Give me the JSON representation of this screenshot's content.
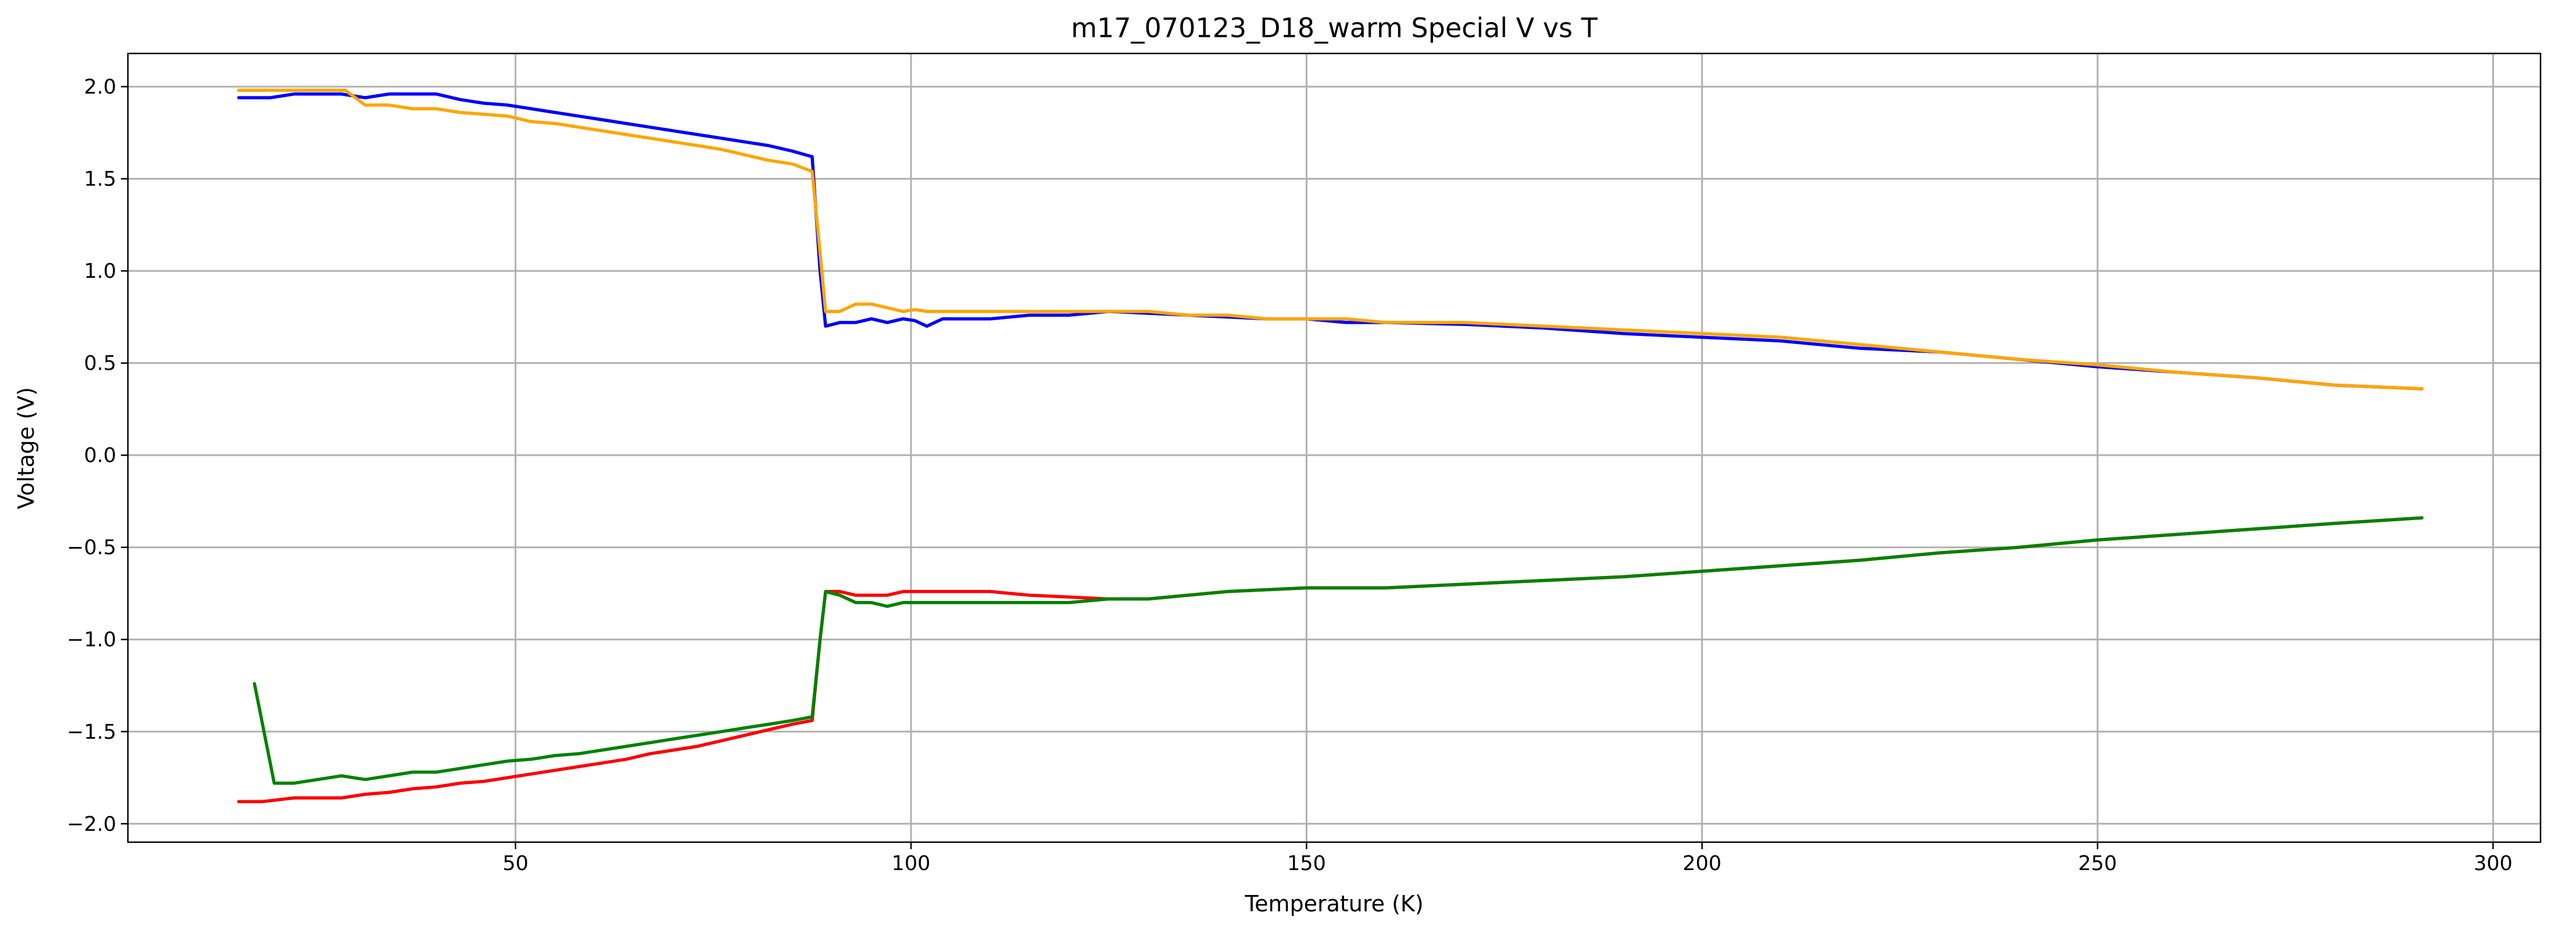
{
  "chart_data": {
    "type": "line",
    "title": "m17_070123_D18_warm Special V vs T",
    "xlabel": "Temperature (K)",
    "ylabel": "Voltage (V)",
    "xlim": [
      1,
      306
    ],
    "ylim": [
      -2.1,
      2.18
    ],
    "xticks": [
      50,
      100,
      150,
      200,
      250,
      300
    ],
    "yticks": [
      2.0,
      1.5,
      1.0,
      0.5,
      0.0,
      -0.5,
      -1.0,
      -1.5,
      -2.0
    ],
    "xtick_labels": [
      "50",
      "100",
      "150",
      "200",
      "250",
      "300"
    ],
    "ytick_labels": [
      "2.0",
      "1.5",
      "1.0",
      "0.5",
      "0.0",
      "−0.5",
      "−1.0",
      "−1.5",
      "−2.0"
    ],
    "grid": true,
    "legend": false,
    "series": [
      {
        "color": "#0000ff",
        "x": [
          15,
          19,
          22,
          25,
          28,
          31,
          34,
          37,
          40,
          43,
          46,
          49,
          52,
          55,
          58,
          61,
          64,
          67,
          70,
          73,
          76,
          79,
          82,
          85,
          87.5,
          88.5,
          89.2,
          91,
          93,
          95,
          97,
          99,
          100.5,
          102,
          104,
          106,
          110,
          115,
          120,
          125,
          130,
          135,
          140,
          145,
          150,
          155,
          160,
          170,
          180,
          190,
          200,
          210,
          220,
          230,
          240,
          250,
          260,
          270,
          280,
          291
        ],
        "y": [
          1.94,
          1.94,
          1.96,
          1.96,
          1.96,
          1.94,
          1.96,
          1.96,
          1.96,
          1.93,
          1.91,
          1.9,
          1.88,
          1.86,
          1.84,
          1.82,
          1.8,
          1.78,
          1.76,
          1.74,
          1.72,
          1.7,
          1.68,
          1.65,
          1.62,
          1.0,
          0.7,
          0.72,
          0.72,
          0.74,
          0.72,
          0.74,
          0.73,
          0.7,
          0.74,
          0.74,
          0.74,
          0.76,
          0.76,
          0.78,
          0.77,
          0.76,
          0.75,
          0.74,
          0.74,
          0.72,
          0.72,
          0.71,
          0.69,
          0.66,
          0.64,
          0.62,
          0.58,
          0.56,
          0.52,
          0.48,
          0.45,
          0.42,
          0.38,
          0.36
        ]
      },
      {
        "color": "#ffa500",
        "x": [
          15,
          20,
          25,
          28.5,
          31,
          34,
          37,
          40,
          43,
          46,
          49,
          52,
          55,
          58,
          61,
          64,
          67,
          70,
          73,
          76,
          79,
          82,
          85,
          87.5,
          88.5,
          89.2,
          91,
          93,
          95,
          97,
          99,
          100.5,
          102,
          105,
          110,
          115,
          120,
          125,
          130,
          135,
          140,
          145,
          150,
          155,
          160,
          170,
          180,
          190,
          200,
          210,
          220,
          230,
          240,
          250,
          260,
          270,
          280,
          291
        ],
        "y": [
          1.98,
          1.98,
          1.98,
          1.98,
          1.9,
          1.9,
          1.88,
          1.88,
          1.86,
          1.85,
          1.84,
          1.81,
          1.8,
          1.78,
          1.76,
          1.74,
          1.72,
          1.7,
          1.68,
          1.66,
          1.63,
          1.6,
          1.58,
          1.54,
          1.1,
          0.78,
          0.78,
          0.82,
          0.82,
          0.8,
          0.78,
          0.79,
          0.78,
          0.78,
          0.78,
          0.78,
          0.78,
          0.78,
          0.78,
          0.76,
          0.76,
          0.74,
          0.74,
          0.74,
          0.72,
          0.72,
          0.7,
          0.68,
          0.66,
          0.64,
          0.6,
          0.56,
          0.52,
          0.49,
          0.45,
          0.42,
          0.38,
          0.36
        ]
      },
      {
        "color": "#ff0000",
        "x": [
          15,
          18,
          22,
          25,
          28,
          31,
          34,
          37,
          40,
          43,
          46,
          49,
          52,
          55,
          58,
          61,
          64,
          67,
          70,
          73,
          76,
          79,
          82,
          85,
          87.5,
          88.5,
          89.2,
          91,
          93,
          95,
          97,
          99,
          100,
          105,
          110,
          115,
          120,
          125,
          130,
          135,
          140,
          145,
          150,
          155,
          160,
          170,
          180,
          190,
          200,
          210,
          220,
          230,
          240,
          250,
          260,
          270,
          280,
          291
        ],
        "y": [
          -1.88,
          -1.88,
          -1.86,
          -1.86,
          -1.86,
          -1.84,
          -1.83,
          -1.81,
          -1.8,
          -1.78,
          -1.77,
          -1.75,
          -1.73,
          -1.71,
          -1.69,
          -1.67,
          -1.65,
          -1.62,
          -1.6,
          -1.58,
          -1.55,
          -1.52,
          -1.49,
          -1.46,
          -1.44,
          -1.0,
          -0.74,
          -0.74,
          -0.76,
          -0.76,
          -0.76,
          -0.74,
          -0.74,
          -0.74,
          -0.74,
          -0.76,
          -0.77,
          -0.78,
          -0.78,
          -0.76,
          -0.74,
          -0.73,
          -0.72,
          -0.72,
          -0.72,
          -0.7,
          -0.68,
          -0.66,
          -0.63,
          -0.6,
          -0.57,
          -0.53,
          -0.5,
          -0.46,
          -0.43,
          -0.4,
          -0.37,
          -0.34
        ]
      },
      {
        "color": "#008000",
        "x": [
          17,
          19.5,
          22,
          25,
          28,
          31,
          34,
          37,
          40,
          43,
          46,
          49,
          52,
          55,
          58,
          61,
          64,
          67,
          70,
          73,
          76,
          79,
          82,
          85,
          87.5,
          88.5,
          89.2,
          91,
          93,
          95,
          97,
          99,
          100,
          105,
          110,
          115,
          120,
          125,
          130,
          135,
          140,
          145,
          150,
          155,
          160,
          170,
          180,
          190,
          200,
          210,
          220,
          230,
          240,
          250,
          260,
          270,
          280,
          291
        ],
        "y": [
          -1.24,
          -1.78,
          -1.78,
          -1.76,
          -1.74,
          -1.76,
          -1.74,
          -1.72,
          -1.72,
          -1.7,
          -1.68,
          -1.66,
          -1.65,
          -1.63,
          -1.62,
          -1.6,
          -1.58,
          -1.56,
          -1.54,
          -1.52,
          -1.5,
          -1.48,
          -1.46,
          -1.44,
          -1.42,
          -1.0,
          -0.74,
          -0.76,
          -0.8,
          -0.8,
          -0.82,
          -0.8,
          -0.8,
          -0.8,
          -0.8,
          -0.8,
          -0.8,
          -0.78,
          -0.78,
          -0.76,
          -0.74,
          -0.73,
          -0.72,
          -0.72,
          -0.72,
          -0.7,
          -0.68,
          -0.66,
          -0.63,
          -0.6,
          -0.57,
          -0.53,
          -0.5,
          -0.46,
          -0.43,
          -0.4,
          -0.37,
          -0.34
        ]
      }
    ]
  }
}
